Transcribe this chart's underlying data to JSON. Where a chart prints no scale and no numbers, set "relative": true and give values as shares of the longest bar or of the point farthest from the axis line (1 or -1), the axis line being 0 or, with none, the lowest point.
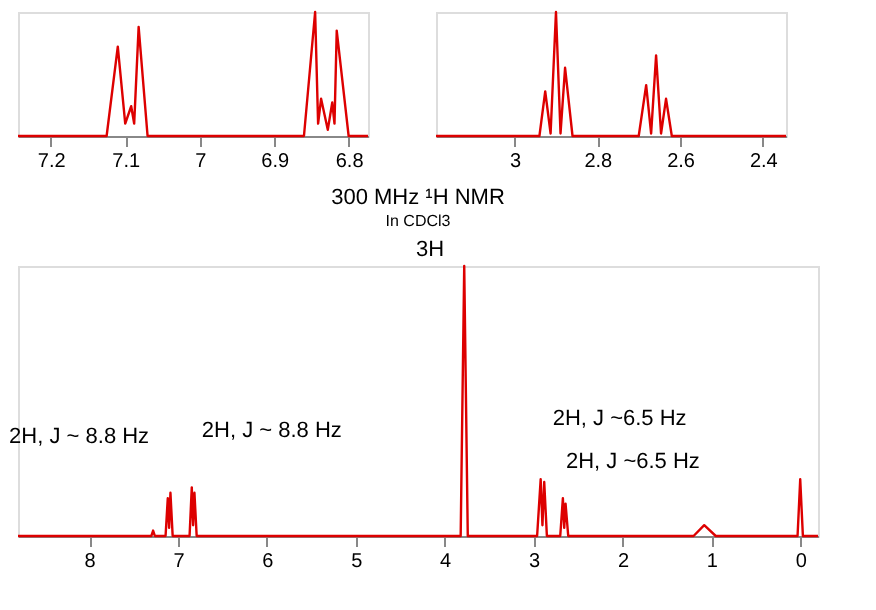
{
  "chart_data": [
    {
      "type": "line",
      "title": "300 MHz ¹H NMR",
      "subtitle": "In CDCl3",
      "relative": true,
      "color": "#dd0000",
      "grid": false,
      "marker": "none",
      "line_style": "solid",
      "tick_labels": "x",
      "x": [
        8.8,
        7.3,
        7.28,
        7.26,
        7.14,
        7.115,
        7.1,
        7.085,
        7.06,
        6.87,
        6.845,
        6.83,
        6.815,
        6.79,
        3.82,
        3.78,
        3.74,
        2.96,
        2.92,
        2.9,
        2.88,
        2.85,
        2.7,
        2.67,
        2.655,
        2.64,
        2.61,
        1.2,
        1.08,
        0.95,
        0.03,
        0.0,
        -0.03,
        -0.2
      ],
      "values": [
        0,
        0,
        0.02,
        0,
        0,
        0.14,
        0.03,
        0.16,
        0,
        0,
        0.18,
        0.04,
        0.16,
        0,
        0,
        1,
        0,
        0,
        0.21,
        0.04,
        0.2,
        0,
        0,
        0.14,
        0.03,
        0.12,
        0,
        0,
        0.04,
        0,
        0,
        0.21,
        0,
        0
      ],
      "xlim": [
        8.8,
        -0.2
      ],
      "xticks": [
        8,
        7,
        6,
        5,
        4,
        3,
        2,
        1,
        0
      ],
      "annotations": [
        {
          "text": "2H, J ~ 8.8 Hz",
          "x": 7.1,
          "y": 0.16
        },
        {
          "text": "2H, J ~ 8.8 Hz",
          "x": 6.845,
          "y": 0.18
        },
        {
          "text": "3H",
          "x": 3.78,
          "y": 1
        },
        {
          "text": "2H, J ~6.5 Hz",
          "x": 2.92,
          "y": 0.21
        },
        {
          "text": "2H, J ~6.5 Hz",
          "x": 2.67,
          "y": 0.14
        }
      ]
    },
    {
      "type": "line",
      "relative": true,
      "color": "#dd0000",
      "grid": false,
      "marker": "none",
      "line_style": "solid",
      "tick_labels": "x",
      "x": [
        7.244,
        7.125,
        7.11,
        7.1,
        7.092,
        7.088,
        7.082,
        7.07,
        6.86,
        6.845,
        6.841,
        6.837,
        6.828,
        6.822,
        6.819,
        6.816,
        6.8,
        6.774
      ],
      "values": [
        0,
        0,
        0.72,
        0.1,
        0.24,
        0.1,
        0.88,
        0,
        0,
        1.0,
        0.1,
        0.3,
        0.05,
        0.27,
        0.1,
        0.85,
        0,
        0
      ],
      "xlim": [
        7.244,
        6.774
      ],
      "xticks": [
        7.2,
        7.1,
        7.0,
        6.9,
        6.8
      ]
    },
    {
      "type": "line",
      "relative": true,
      "color": "#dd0000",
      "grid": false,
      "marker": "none",
      "line_style": "solid",
      "tick_labels": "x",
      "x": [
        3.19,
        2.94,
        2.926,
        2.913,
        2.9,
        2.889,
        2.878,
        2.86,
        2.7,
        2.682,
        2.67,
        2.658,
        2.646,
        2.634,
        2.62,
        2.344
      ],
      "values": [
        0,
        0,
        0.36,
        0.02,
        1.0,
        0.02,
        0.55,
        0,
        0,
        0.41,
        0.02,
        0.65,
        0.02,
        0.3,
        0,
        0
      ],
      "xlim": [
        3.19,
        2.344
      ],
      "xticks": [
        3.0,
        2.8,
        2.6,
        2.4
      ]
    }
  ]
}
